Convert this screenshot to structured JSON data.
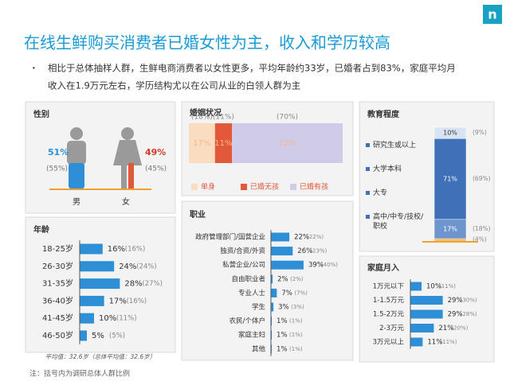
{
  "logo": "n",
  "header": {
    "title": "在线生鲜购买消费者已婚女性为主，收入和学历较高",
    "bullet": [
      "相比于总体抽样人群，生鲜电商消费者以女性更多，平均年龄约33岁，已婚者占到83%，家庭平均月",
      "收入在1.9万元左右，学历结构尤以在公司从业的白领人群为主"
    ]
  },
  "gender": {
    "title": "性别",
    "items": [
      {
        "label": "男",
        "value_label": "51%",
        "overall_label": "(55%)"
      },
      {
        "label": "女",
        "value_label": "49%",
        "overall_label": "(45%)"
      }
    ]
  },
  "marriage": {
    "title": "婚姻状况",
    "categories": [
      "单身",
      "已婚无孩",
      "已婚有孩"
    ],
    "values": [
      17,
      11,
      72
    ],
    "value_labels": [
      "17%",
      "11%",
      "72%"
    ],
    "overall_labels": [
      "(18%)",
      "(11%)",
      "(70%)"
    ],
    "colors": [
      "#fadcc0",
      "#e2583a",
      "#cfcbe8"
    ]
  },
  "education": {
    "title": "教育程度",
    "categories": [
      "研究生或以上",
      "大学本科",
      "大专",
      "高中/中专/技校/职校"
    ],
    "values": [
      10,
      71,
      17,
      2
    ],
    "value_labels": [
      "10%",
      "71%",
      "17%",
      null
    ],
    "overall_labels": [
      "(9%)",
      "(69%)",
      "(18%)",
      "(4%)"
    ],
    "colors": [
      "#d8e4f4",
      "#3f70b8",
      "#6f95cf",
      "#f2b255"
    ]
  },
  "age": {
    "title": "年龄",
    "categories": [
      "18-25岁",
      "26-30岁",
      "31-35岁",
      "36-40岁",
      "41-45岁",
      "46-50岁"
    ],
    "values": [
      16,
      24,
      28,
      17,
      10,
      5
    ],
    "value_labels": [
      "16%",
      "24%",
      "28%",
      "17%",
      "10%",
      "5%"
    ],
    "overall_labels": [
      "(16%)",
      "(24%)",
      "(27%)",
      "(16%)",
      "(11%)",
      "(5%)"
    ],
    "note": "平均值：32.6岁（总体平均值：32.6岁）",
    "color": "#2e8fd6"
  },
  "occupation": {
    "title": "职业",
    "categories": [
      "政府管理部门/国营企业",
      "独资/合资/外资",
      "私营企业/公司",
      "自由职业者",
      "专业人士",
      "学生",
      "农民/个体户",
      "家庭主妇",
      "其他"
    ],
    "values": [
      22,
      26,
      39,
      2,
      7,
      3,
      1,
      1,
      1
    ],
    "value_labels": [
      "22%",
      "26%",
      "39%",
      "2%",
      "7%",
      "3%",
      "1%",
      "1%",
      "1%"
    ],
    "overall_labels": [
      "(22%)",
      "(23%)",
      "(40%)",
      "(2%)",
      "(7%)",
      "(3%)",
      "(1%)",
      "(1%)",
      "(1%)"
    ],
    "color": "#2e8fd6"
  },
  "income": {
    "title": "家庭月入",
    "categories": [
      "1万元以下",
      "1-1.5万元",
      "1.5-2万元",
      "2-3万元",
      "3万元以上"
    ],
    "values": [
      10,
      29,
      29,
      21,
      11
    ],
    "value_labels": [
      "10%",
      "29%",
      "29%",
      "21%",
      "11%"
    ],
    "overall_labels": [
      "(11%)",
      "(30%)",
      "(28%)",
      "(20%)",
      "(11%)"
    ],
    "color": "#2e8fd6"
  },
  "footnote": "注：括号内为调研总体人群比例"
}
